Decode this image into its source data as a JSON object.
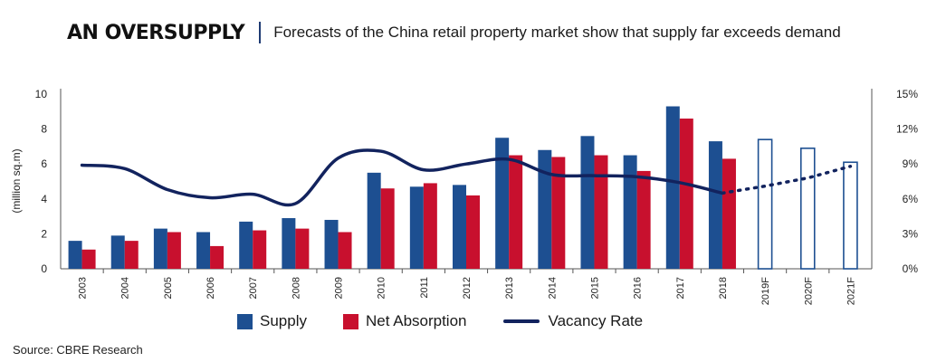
{
  "header": {
    "title": "AN OVERSUPPLY",
    "subtitle": "Forecasts of the China retail property market show that supply far exceeds demand"
  },
  "source": "Source: CBRE Research",
  "colors": {
    "supply": "#1d4f91",
    "net_absorption": "#c8102e",
    "vacancy": "#12235e",
    "forecast_outline": "#1d4f91"
  },
  "chart_data": {
    "type": "bar",
    "categories": [
      "2003",
      "2004",
      "2005",
      "2006",
      "2007",
      "2008",
      "2009",
      "2010",
      "2011",
      "2012",
      "2013",
      "2014",
      "2015",
      "2016",
      "2017",
      "2018",
      "2019F",
      "2020F",
      "2021F"
    ],
    "series": [
      {
        "name": "Supply",
        "values": [
          1.6,
          1.9,
          2.3,
          2.1,
          2.7,
          2.9,
          2.8,
          5.5,
          4.7,
          4.8,
          7.5,
          6.8,
          7.6,
          6.5,
          9.3,
          7.3,
          7.4,
          6.9,
          6.1
        ]
      },
      {
        "name": "Net Absorption",
        "values": [
          1.1,
          1.6,
          2.1,
          1.3,
          2.2,
          2.3,
          2.1,
          4.6,
          4.9,
          4.2,
          6.5,
          6.4,
          6.5,
          5.6,
          8.6,
          6.3,
          null,
          null,
          null
        ]
      },
      {
        "name": "Vacancy Rate",
        "type": "line",
        "axis": "right",
        "values": [
          8.9,
          8.6,
          6.8,
          6.1,
          6.4,
          5.6,
          9.5,
          10.1,
          8.5,
          9.0,
          9.4,
          8.1,
          8.0,
          7.9,
          7.4,
          6.5,
          7.1,
          7.8,
          8.8
        ]
      }
    ],
    "forecast_categories": [
      "2019F",
      "2020F",
      "2021F"
    ],
    "ylabel": "(million sq.m)",
    "ylim": [
      0,
      10
    ],
    "yticks": [
      "0",
      "2",
      "4",
      "6",
      "8",
      "10"
    ],
    "y2lim": [
      0,
      15
    ],
    "y2ticks": [
      "0%",
      "3%",
      "6%",
      "9%",
      "12%",
      "15%"
    ],
    "legend": {
      "position": "bottom"
    },
    "grid": false
  }
}
